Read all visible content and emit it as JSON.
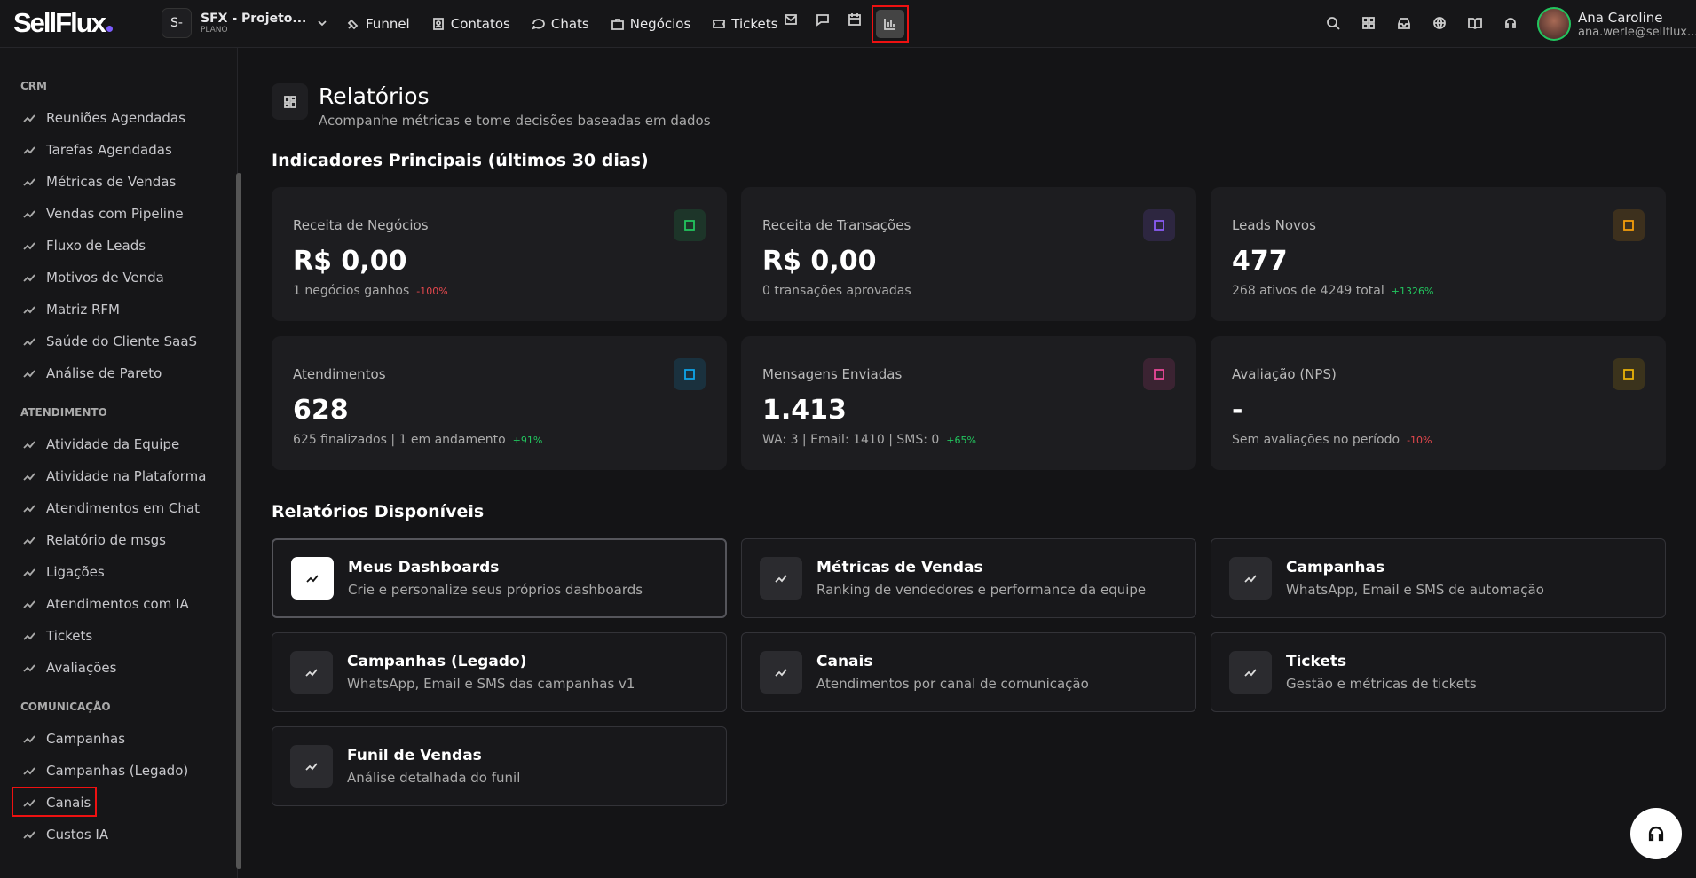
{
  "brand": "SellFlux",
  "workspace": {
    "initial": "S-",
    "name": "SFX - Projeto...",
    "plan": "PLANO"
  },
  "nav": [
    "Funnel",
    "Contatos",
    "Chats",
    "Negócios",
    "Tickets"
  ],
  "user": {
    "name": "Ana Caroline",
    "email": "ana.werle@sellflux..."
  },
  "sidebar": [
    {
      "title": "CRM",
      "items": [
        "Reuniões Agendadas",
        "Tarefas Agendadas",
        "Métricas de Vendas",
        "Vendas com Pipeline",
        "Fluxo de Leads",
        "Motivos de Venda",
        "Matriz RFM",
        "Saúde do Cliente SaaS",
        "Análise de Pareto"
      ]
    },
    {
      "title": "ATENDIMENTO",
      "items": [
        "Atividade da Equipe",
        "Atividade na Plataforma",
        "Atendimentos em Chat",
        "Relatório de msgs",
        "Ligações",
        "Atendimentos com IA",
        "Tickets",
        "Avaliações"
      ]
    },
    {
      "title": "COMUNICAÇÃO",
      "items": [
        "Campanhas",
        "Campanhas (Legado)",
        "Canais",
        "Custos IA"
      ]
    }
  ],
  "page": {
    "title": "Relatórios",
    "subtitle": "Acompanhe métricas e tome decisões baseadas em dados"
  },
  "indicators": {
    "title": "Indicadores Principais (últimos 30 dias)",
    "cards": [
      {
        "label": "Receita de Negócios",
        "value": "R$ 0,00",
        "detail": "1 negócios ganhos",
        "trend": "-100%",
        "trend_color": "#e5484d",
        "icon_color": "#22c55e"
      },
      {
        "label": "Receita de Transações",
        "value": "R$ 0,00",
        "detail": "0 transações aprovadas",
        "icon_color": "#8b5cf6"
      },
      {
        "label": "Leads Novos",
        "value": "477",
        "detail": "268 ativos de 4249 total",
        "trend": "+1326%",
        "trend_color": "#22c55e",
        "icon_color": "#f59e0b"
      },
      {
        "label": "Atendimentos",
        "value": "628",
        "detail": "625 finalizados | 1 em andamento",
        "trend": "+91%",
        "trend_color": "#22c55e",
        "icon_color": "#0ea5e9"
      },
      {
        "label": "Mensagens Enviadas",
        "value": "1.413",
        "detail": "WA: 3 | Email: 1410 | SMS: 0",
        "trend": "+65%",
        "trend_color": "#22c55e",
        "icon_color": "#ec4899"
      },
      {
        "label": "Avaliação (NPS)",
        "value": "-",
        "detail": "Sem avaliações no período",
        "trend": "-10%",
        "trend_color": "#e5484d",
        "icon_color": "#eab308"
      }
    ]
  },
  "reports": {
    "title": "Relatórios Disponíveis",
    "items": [
      {
        "title": "Meus Dashboards",
        "desc": "Crie e personalize seus próprios dashboards"
      },
      {
        "title": "Métricas de Vendas",
        "desc": "Ranking de vendedores e performance da equipe"
      },
      {
        "title": "Campanhas",
        "desc": "WhatsApp, Email e SMS de automação"
      },
      {
        "title": "Campanhas (Legado)",
        "desc": "WhatsApp, Email e SMS das campanhas v1"
      },
      {
        "title": "Canais",
        "desc": "Atendimentos por canal de comunicação"
      },
      {
        "title": "Tickets",
        "desc": "Gestão e métricas de tickets"
      },
      {
        "title": "Funil de Vendas",
        "desc": "Análise detalhada do funil"
      }
    ]
  }
}
